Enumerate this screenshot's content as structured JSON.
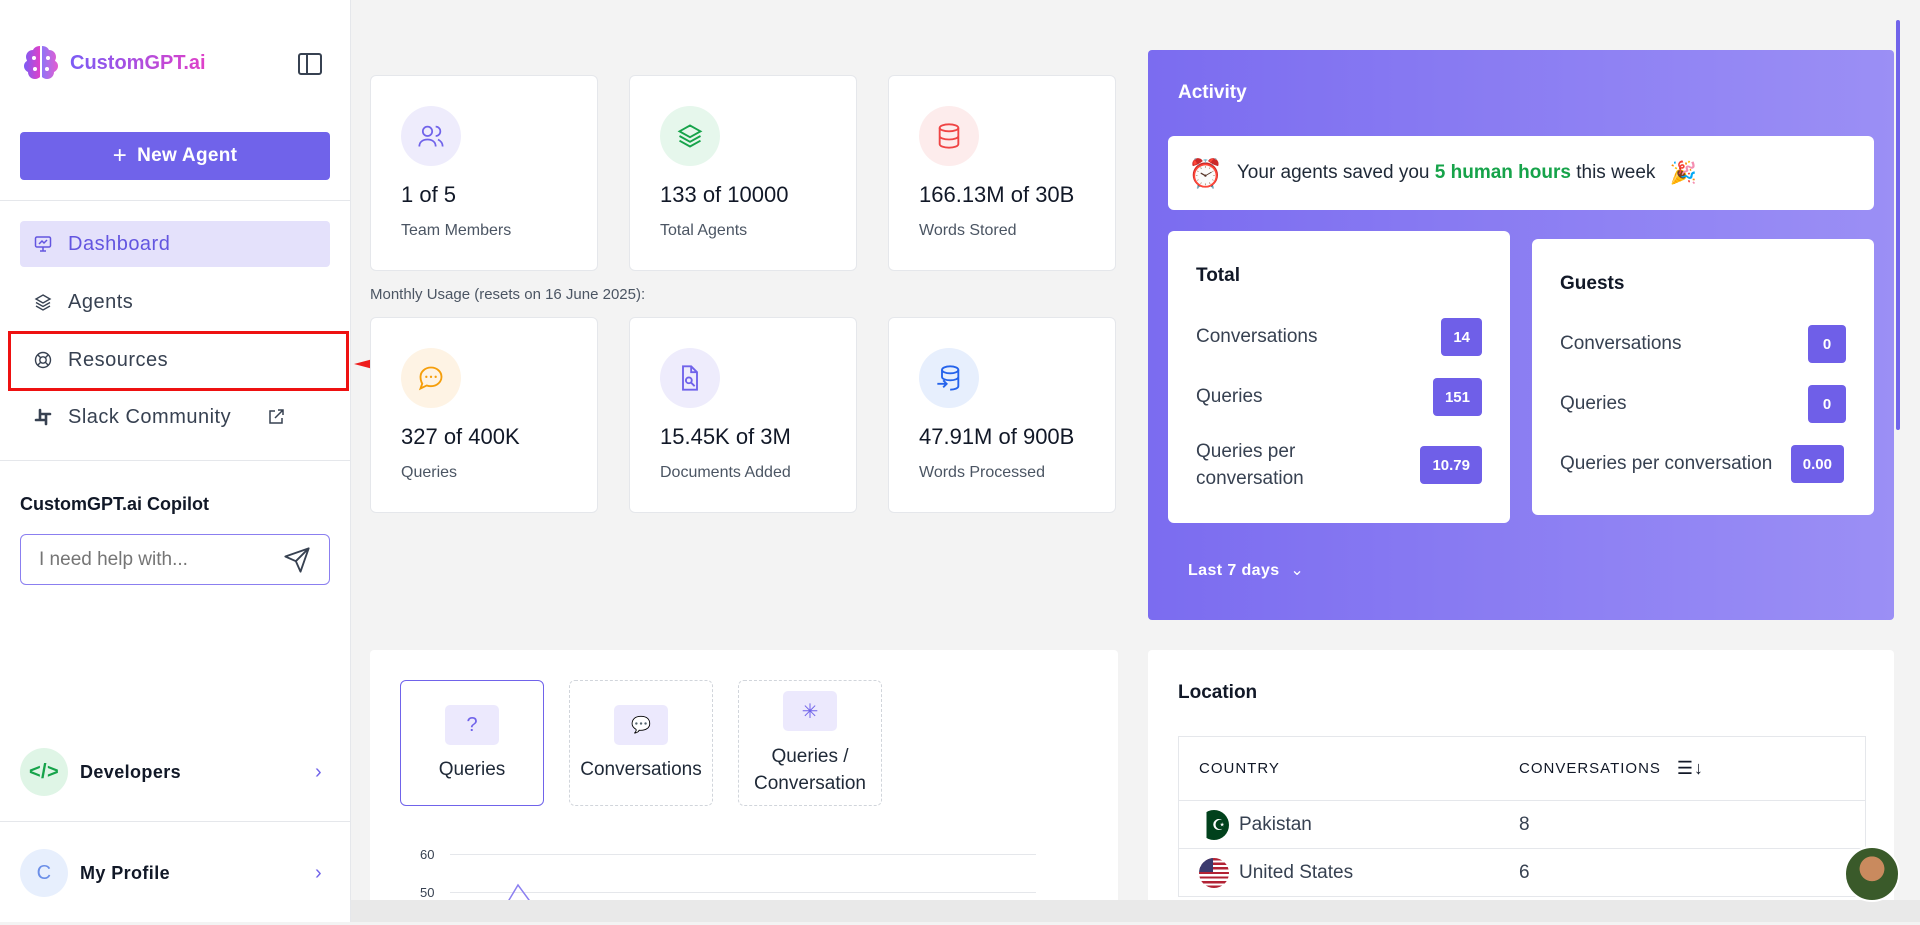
{
  "sidebar": {
    "logo_text": "CustomGPT.ai",
    "new_agent_label": "New Agent",
    "nav": [
      {
        "label": "Dashboard",
        "icon": "dashboard-icon"
      },
      {
        "label": "Agents",
        "icon": "layers-icon"
      },
      {
        "label": "Resources",
        "icon": "lifebuoy-icon"
      },
      {
        "label": "Slack Community",
        "icon": "slack-icon"
      }
    ],
    "copilot_title": "CustomGPT.ai Copilot",
    "copilot_placeholder": "I need help with...",
    "developers_label": "Developers",
    "profile_label": "My Profile",
    "profile_initial": "C"
  },
  "stats_top": [
    {
      "value": "1 of 5",
      "label": "Team Members",
      "color": "#7063ea",
      "bg": "#eeecfc",
      "icon": "users-icon"
    },
    {
      "value": "133 of 10000",
      "label": "Total Agents",
      "color": "#16a34a",
      "bg": "#e6f7ec",
      "icon": "layers-icon"
    },
    {
      "value": "166.13M of 30B",
      "label": "Words Stored",
      "color": "#ef4444",
      "bg": "#fdecec",
      "icon": "database-icon"
    }
  ],
  "monthly_usage": "Monthly Usage (resets on 16 June 2025):",
  "stats_bottom": [
    {
      "value": "327 of 400K",
      "label": "Queries",
      "color": "#f59e0b",
      "bg": "#fef3e4",
      "icon": "chat-icon"
    },
    {
      "value": "15.45K of 3M",
      "label": "Documents Added",
      "color": "#7063ea",
      "bg": "#eeecfc",
      "icon": "document-search-icon"
    },
    {
      "value": "47.91M of 900B",
      "label": "Words Processed",
      "color": "#2563eb",
      "bg": "#e7effd",
      "icon": "database-import-icon"
    }
  ],
  "activity": {
    "title": "Activity",
    "saved_prefix": "Your agents saved you",
    "saved_highlight": "5 human hours",
    "saved_suffix": "this week",
    "total": {
      "title": "Total",
      "rows": [
        {
          "label": "Conversations",
          "value": "14"
        },
        {
          "label": "Queries",
          "value": "151"
        },
        {
          "label": "Queries per conversation",
          "value": "10.79"
        }
      ]
    },
    "guests": {
      "title": "Guests",
      "rows": [
        {
          "label": "Conversations",
          "value": "0"
        },
        {
          "label": "Queries",
          "value": "0"
        },
        {
          "label": "Queries per conversation",
          "value": "0.00"
        }
      ]
    },
    "range_label": "Last 7 days"
  },
  "chart_tabs": [
    {
      "label": "Queries",
      "glyph": "?"
    },
    {
      "label": "Conversations",
      "glyph": "💬"
    },
    {
      "label": "Queries / Conversation",
      "glyph": "✳"
    }
  ],
  "chart_yticks": [
    "60",
    "50"
  ],
  "location": {
    "title": "Location",
    "col_country": "COUNTRY",
    "col_conversations": "CONVERSATIONS",
    "rows": [
      {
        "country": "Pakistan",
        "conversations": "8"
      },
      {
        "country": "United States",
        "conversations": "6"
      }
    ]
  }
}
